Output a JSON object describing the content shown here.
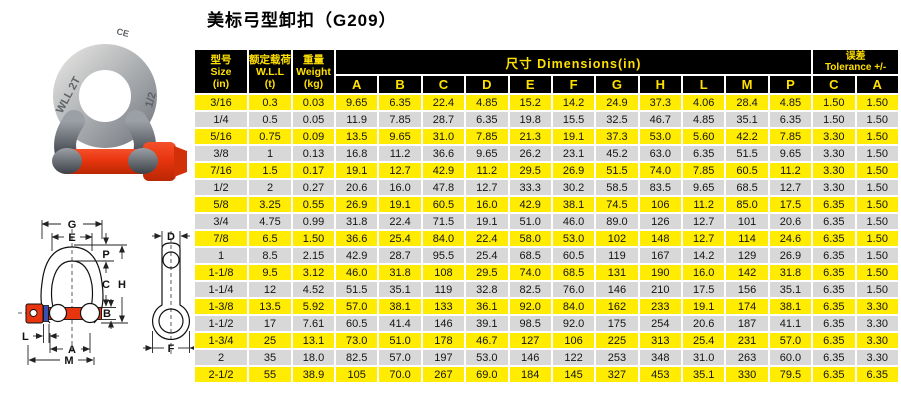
{
  "title": "美标弓型卸扣（G209）",
  "photo": {
    "markings": [
      "WLL 2T",
      "CE",
      "1/2"
    ]
  },
  "diagram": {
    "labels": [
      "G",
      "E",
      "P",
      "C",
      "H",
      "B",
      "L",
      "A",
      "M",
      "D",
      "F"
    ]
  },
  "table": {
    "header": {
      "size": {
        "zh": "型号",
        "en": "Size",
        "unit": "(in)"
      },
      "wll": {
        "zh": "额定载荷",
        "en": "W.L.L",
        "unit": "(t)"
      },
      "weight": {
        "zh": "重量",
        "en": "Weight",
        "unit": "(kg)"
      },
      "dimensions": {
        "zh": "尺寸",
        "en": "Dimensions(in)",
        "cols": [
          "A",
          "B",
          "C",
          "D",
          "E",
          "F",
          "G",
          "H",
          "L",
          "M",
          "P"
        ]
      },
      "tolerance": {
        "zh": "误差",
        "en": "Tolerance +/-",
        "cols": [
          "C",
          "A"
        ]
      }
    },
    "rows": [
      [
        "3/16",
        "0.3",
        "0.03",
        "9.65",
        "6.35",
        "22.4",
        "4.85",
        "15.2",
        "14.2",
        "24.9",
        "37.3",
        "4.06",
        "28.4",
        "4.85",
        "1.50",
        "1.50"
      ],
      [
        "1/4",
        "0.5",
        "0.05",
        "11.9",
        "7.85",
        "28.7",
        "6.35",
        "19.8",
        "15.5",
        "32.5",
        "46.7",
        "4.85",
        "35.1",
        "6.35",
        "1.50",
        "1.50"
      ],
      [
        "5/16",
        "0.75",
        "0.09",
        "13.5",
        "9.65",
        "31.0",
        "7.85",
        "21.3",
        "19.1",
        "37.3",
        "53.0",
        "5.60",
        "42.2",
        "7.85",
        "3.30",
        "1.50"
      ],
      [
        "3/8",
        "1",
        "0.13",
        "16.8",
        "11.2",
        "36.6",
        "9.65",
        "26.2",
        "23.1",
        "45.2",
        "63.0",
        "6.35",
        "51.5",
        "9.65",
        "3.30",
        "1.50"
      ],
      [
        "7/16",
        "1.5",
        "0.17",
        "19.1",
        "12.7",
        "42.9",
        "11.2",
        "29.5",
        "26.9",
        "51.5",
        "74.0",
        "7.85",
        "60.5",
        "11.2",
        "3.30",
        "1.50"
      ],
      [
        "1/2",
        "2",
        "0.27",
        "20.6",
        "16.0",
        "47.8",
        "12.7",
        "33.3",
        "30.2",
        "58.5",
        "83.5",
        "9.65",
        "68.5",
        "12.7",
        "3.30",
        "1.50"
      ],
      [
        "5/8",
        "3.25",
        "0.55",
        "26.9",
        "19.1",
        "60.5",
        "16.0",
        "42.9",
        "38.1",
        "74.5",
        "106",
        "11.2",
        "85.0",
        "17.5",
        "6.35",
        "1.50"
      ],
      [
        "3/4",
        "4.75",
        "0.99",
        "31.8",
        "22.4",
        "71.5",
        "19.1",
        "51.0",
        "46.0",
        "89.0",
        "126",
        "12.7",
        "101",
        "20.6",
        "6.35",
        "1.50"
      ],
      [
        "7/8",
        "6.5",
        "1.50",
        "36.6",
        "25.4",
        "84.0",
        "22.4",
        "58.0",
        "53.0",
        "102",
        "148",
        "12.7",
        "114",
        "24.6",
        "6.35",
        "1.50"
      ],
      [
        "1",
        "8.5",
        "2.15",
        "42.9",
        "28.7",
        "95.5",
        "25.4",
        "68.5",
        "60.5",
        "119",
        "167",
        "14.2",
        "129",
        "26.9",
        "6.35",
        "1.50"
      ],
      [
        "1-1/8",
        "9.5",
        "3.12",
        "46.0",
        "31.8",
        "108",
        "29.5",
        "74.0",
        "68.5",
        "131",
        "190",
        "16.0",
        "142",
        "31.8",
        "6.35",
        "1.50"
      ],
      [
        "1-1/4",
        "12",
        "4.52",
        "51.5",
        "35.1",
        "119",
        "32.8",
        "82.5",
        "76.0",
        "146",
        "210",
        "17.5",
        "156",
        "35.1",
        "6.35",
        "1.50"
      ],
      [
        "1-3/8",
        "13.5",
        "5.92",
        "57.0",
        "38.1",
        "133",
        "36.1",
        "92.0",
        "84.0",
        "162",
        "233",
        "19.1",
        "174",
        "38.1",
        "6.35",
        "3.30"
      ],
      [
        "1-1/2",
        "17",
        "7.61",
        "60.5",
        "41.4",
        "146",
        "39.1",
        "98.5",
        "92.0",
        "175",
        "254",
        "20.6",
        "187",
        "41.1",
        "6.35",
        "3.30"
      ],
      [
        "1-3/4",
        "25",
        "13.1",
        "73.0",
        "51.0",
        "178",
        "46.7",
        "127",
        "106",
        "225",
        "313",
        "25.4",
        "231",
        "57.0",
        "6.35",
        "3.30"
      ],
      [
        "2",
        "35",
        "18.0",
        "82.5",
        "57.0",
        "197",
        "53.0",
        "146",
        "122",
        "253",
        "348",
        "31.0",
        "263",
        "60.0",
        "6.35",
        "3.30"
      ],
      [
        "2-1/2",
        "55",
        "38.9",
        "105",
        "70.0",
        "267",
        "69.0",
        "184",
        "145",
        "327",
        "453",
        "35.1",
        "330",
        "79.5",
        "6.35",
        "6.35"
      ]
    ]
  },
  "colors": {
    "header_bg": "#000000",
    "header_text": "#ffe000",
    "row_yellow": "#ffec00",
    "row_gray": "#d8d8d8",
    "pin_red": "#e8350f",
    "diagram_pin_blue": "#3950b0"
  }
}
